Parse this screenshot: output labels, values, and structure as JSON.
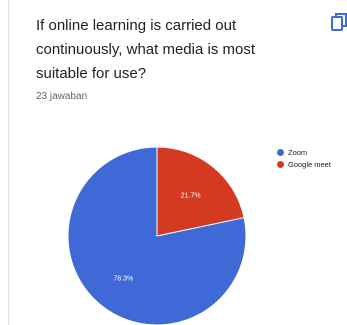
{
  "question": {
    "title": "If online learning is carried out continuously, what media is most suitable for use?",
    "responses": "23 jawaban"
  },
  "icons": {
    "copy": "copy-icon"
  },
  "colors": {
    "zoom": "#3f69d6",
    "google_meet": "#d43a1f",
    "label_text": "#ffffff"
  },
  "chart_data": {
    "type": "pie",
    "title": "",
    "slices": [
      {
        "label": "Zoom",
        "value": 78.3,
        "display": "78.3%",
        "color": "#3f69d6"
      },
      {
        "label": "Google meet",
        "value": 21.7,
        "display": "21.7%",
        "color": "#d43a1f"
      }
    ],
    "start_angle_deg": 0,
    "legend_position": "right"
  }
}
